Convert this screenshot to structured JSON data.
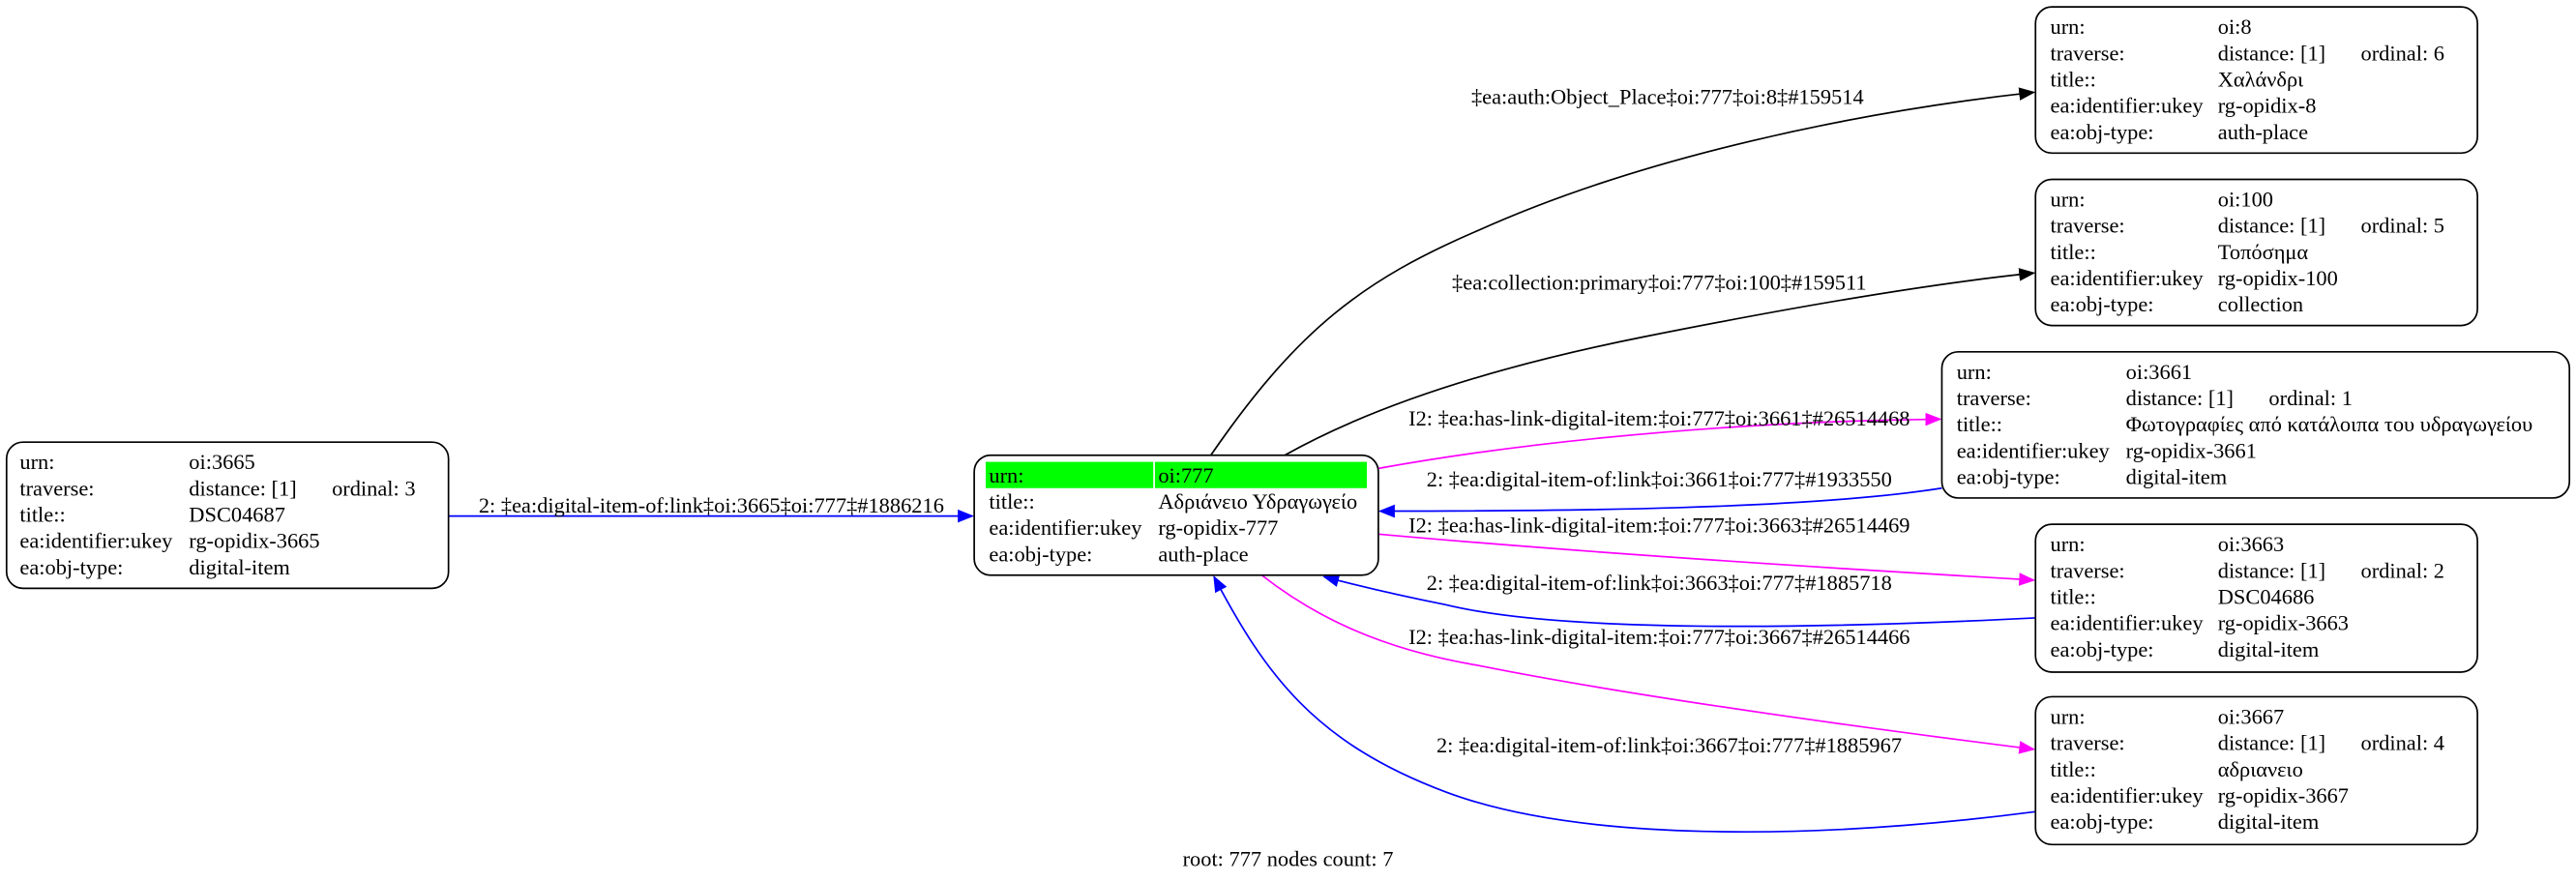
{
  "colors": {
    "highlight": "#00ff00",
    "link_black": "#000000",
    "link_magenta": "#ff00ff",
    "link_blue": "#0000ff"
  },
  "nodes": {
    "n3665": {
      "rows": [
        [
          "urn:",
          "oi:3665"
        ],
        [
          "traverse:",
          "distance: [1]",
          "ordinal: 3"
        ],
        [
          "title::",
          "DSC04687"
        ],
        [
          "ea:identifier:ukey",
          "rg-opidix-3665"
        ],
        [
          "ea:obj-type:",
          "digital-item"
        ]
      ]
    },
    "n777": {
      "highlighted_row": 0,
      "rows": [
        [
          "urn:",
          "oi:777"
        ],
        [
          "title::",
          "Αδριάνειο Υδραγωγείο"
        ],
        [
          "ea:identifier:ukey",
          "rg-opidix-777"
        ],
        [
          "ea:obj-type:",
          "auth-place"
        ]
      ]
    },
    "n8": {
      "rows": [
        [
          "urn:",
          "oi:8"
        ],
        [
          "traverse:",
          "distance: [1]",
          "ordinal: 6"
        ],
        [
          "title::",
          "Χαλάνδρι"
        ],
        [
          "ea:identifier:ukey",
          "rg-opidix-8"
        ],
        [
          "ea:obj-type:",
          "auth-place"
        ]
      ]
    },
    "n100": {
      "rows": [
        [
          "urn:",
          "oi:100"
        ],
        [
          "traverse:",
          "distance: [1]",
          "ordinal: 5"
        ],
        [
          "title::",
          "Τοπόσημα"
        ],
        [
          "ea:identifier:ukey",
          "rg-opidix-100"
        ],
        [
          "ea:obj-type:",
          "collection"
        ]
      ]
    },
    "n3661": {
      "rows": [
        [
          "urn:",
          "oi:3661"
        ],
        [
          "traverse:",
          "distance: [1]",
          "ordinal: 1"
        ],
        [
          "title::",
          "Φωτογραφίες από κατάλοιπα του υδραγωγείου"
        ],
        [
          "ea:identifier:ukey",
          "rg-opidix-3661"
        ],
        [
          "ea:obj-type:",
          "digital-item"
        ]
      ]
    },
    "n3663": {
      "rows": [
        [
          "urn:",
          "oi:3663"
        ],
        [
          "traverse:",
          "distance: [1]",
          "ordinal: 2"
        ],
        [
          "title::",
          "DSC04686"
        ],
        [
          "ea:identifier:ukey",
          "rg-opidix-3663"
        ],
        [
          "ea:obj-type:",
          "digital-item"
        ]
      ]
    },
    "n3667": {
      "rows": [
        [
          "urn:",
          "oi:3667"
        ],
        [
          "traverse:",
          "distance: [1]",
          "ordinal: 4"
        ],
        [
          "title::",
          "αδριανειο"
        ],
        [
          "ea:identifier:ukey",
          "rg-opidix-3667"
        ],
        [
          "ea:obj-type:",
          "digital-item"
        ]
      ]
    }
  },
  "edges": [
    {
      "from": "oi:777",
      "to": "oi:8",
      "color": "#000000",
      "label": "‡ea:auth:Object_Place‡oi:777‡oi:8‡#159514"
    },
    {
      "from": "oi:777",
      "to": "oi:100",
      "color": "#000000",
      "label": "‡ea:collection:primary‡oi:777‡oi:100‡#159511"
    },
    {
      "from": "oi:777",
      "to": "oi:3661",
      "color": "#ff00ff",
      "label": "I2: ‡ea:has-link-digital-item:‡oi:777‡oi:3661‡#26514468"
    },
    {
      "from": "oi:3661",
      "to": "oi:777",
      "color": "#0000ff",
      "label": "2: ‡ea:digital-item-of:link‡oi:3661‡oi:777‡#1933550"
    },
    {
      "from": "oi:777",
      "to": "oi:3663",
      "color": "#ff00ff",
      "label": "I2: ‡ea:has-link-digital-item:‡oi:777‡oi:3663‡#26514469"
    },
    {
      "from": "oi:3663",
      "to": "oi:777",
      "color": "#0000ff",
      "label": "2: ‡ea:digital-item-of:link‡oi:3663‡oi:777‡#1885718"
    },
    {
      "from": "oi:777",
      "to": "oi:3667",
      "color": "#ff00ff",
      "label": "I2: ‡ea:has-link-digital-item:‡oi:777‡oi:3667‡#26514466"
    },
    {
      "from": "oi:3667",
      "to": "oi:777",
      "color": "#0000ff",
      "label": "2: ‡ea:digital-item-of:link‡oi:3667‡oi:777‡#1885967"
    },
    {
      "from": "oi:3665",
      "to": "oi:777",
      "color": "#0000ff",
      "label": "2: ‡ea:digital-item-of:link‡oi:3665‡oi:777‡#1886216"
    }
  ],
  "footer": "root: 777 nodes count: 7"
}
